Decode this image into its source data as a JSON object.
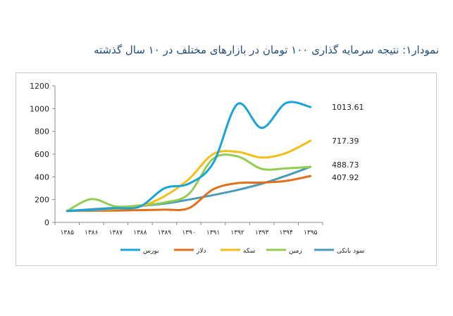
{
  "chart_data": {
    "type": "line",
    "title": "نمودار۱: نتیجه سرمایه گذاری ۱۰۰ تومان در بازارهای مختلف در ۱۰ سال گذشته",
    "categories": [
      "۱۳۸۵",
      "۱۳۸۶",
      "۱۳۸۷",
      "۱۳۸۸",
      "۱۳۸۹",
      "۱۳۹۰",
      "۱۳۹۱",
      "۱۳۹۲",
      "۱۳۹۳",
      "۱۳۹۴",
      "۱۳۹۵"
    ],
    "ylim": [
      0,
      1200
    ],
    "yticks": [
      0,
      200,
      400,
      600,
      800,
      1000,
      1200
    ],
    "grid": false,
    "legend_position": "bottom",
    "series": [
      {
        "name": "بورس",
        "color": "#1aa3d6",
        "values": [
          100,
          110,
          125,
          140,
          300,
          340,
          520,
          1040,
          830,
          1050,
          1013.61
        ],
        "end_label": "1013.61"
      },
      {
        "name": "دلار",
        "color": "#e0701e",
        "values": [
          100,
          102,
          104,
          108,
          112,
          125,
          290,
          345,
          350,
          365,
          407.92
        ],
        "end_label": "407.92"
      },
      {
        "name": "سکه",
        "color": "#f2be1a",
        "values": [
          100,
          108,
          120,
          140,
          230,
          380,
          600,
          620,
          570,
          610,
          717.39
        ],
        "end_label": "717.39"
      },
      {
        "name": "زمین",
        "color": "#92cd52",
        "values": [
          100,
          205,
          140,
          150,
          175,
          250,
          560,
          580,
          470,
          475,
          488
        ],
        "end_label": ""
      },
      {
        "name": "سود بانکی",
        "color": "#4a9ab8",
        "values": [
          100,
          115,
          128,
          145,
          165,
          200,
          240,
          285,
          340,
          410,
          488.73
        ],
        "end_label": "488.73"
      }
    ]
  }
}
